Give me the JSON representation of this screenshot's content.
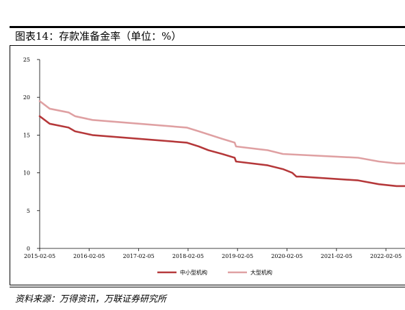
{
  "figure": {
    "title": "图表14：存款准备金率（单位：%）",
    "source": "资料来源：万得资讯，万联证券研究所"
  },
  "chart_data": {
    "type": "line",
    "title": "",
    "xlabel": "",
    "ylabel": "",
    "ylim": [
      0,
      25
    ],
    "yticks": [
      0,
      5,
      10,
      15,
      20,
      25
    ],
    "xticks": [
      "2015-02-05",
      "2016-02-05",
      "2017-02-05",
      "2018-02-05",
      "2019-02-05",
      "2020-02-05",
      "2021-02-05",
      "2022-02-05"
    ],
    "x_range": [
      "2015-02-05",
      "2022-07-01"
    ],
    "grid": false,
    "legend_position": "bottom",
    "series": [
      {
        "name": "中小型机构",
        "color": "#b5383a",
        "points": [
          [
            "2015-02-05",
            17.5
          ],
          [
            "2015-04-20",
            16.5
          ],
          [
            "2015-09-06",
            16.0
          ],
          [
            "2015-10-24",
            15.5
          ],
          [
            "2016-03-01",
            15.0
          ],
          [
            "2018-01-25",
            14.0
          ],
          [
            "2018-04-25",
            13.5
          ],
          [
            "2018-07-05",
            13.0
          ],
          [
            "2018-10-15",
            12.5
          ],
          [
            "2019-01-15",
            12.0
          ],
          [
            "2019-01-25",
            11.5
          ],
          [
            "2019-09-16",
            11.0
          ],
          [
            "2020-01-06",
            10.5
          ],
          [
            "2020-03-16",
            10.0
          ],
          [
            "2020-04-15",
            9.5
          ],
          [
            "2020-05-15",
            9.5
          ],
          [
            "2021-07-15",
            9.0
          ],
          [
            "2021-12-15",
            8.5
          ],
          [
            "2022-04-25",
            8.25
          ],
          [
            "2022-07-01",
            8.25
          ]
        ]
      },
      {
        "name": "大型机构",
        "color": "#dfa0a2",
        "points": [
          [
            "2015-02-05",
            19.5
          ],
          [
            "2015-04-20",
            18.5
          ],
          [
            "2015-09-06",
            18.0
          ],
          [
            "2015-10-24",
            17.5
          ],
          [
            "2016-03-01",
            17.0
          ],
          [
            "2018-01-25",
            16.0
          ],
          [
            "2018-04-25",
            15.5
          ],
          [
            "2018-10-15",
            14.5
          ],
          [
            "2019-01-15",
            14.0
          ],
          [
            "2019-01-25",
            13.5
          ],
          [
            "2019-09-16",
            13.0
          ],
          [
            "2020-01-06",
            12.5
          ],
          [
            "2021-07-15",
            12.0
          ],
          [
            "2021-12-15",
            11.5
          ],
          [
            "2022-04-25",
            11.25
          ],
          [
            "2022-07-01",
            11.25
          ]
        ]
      }
    ]
  }
}
